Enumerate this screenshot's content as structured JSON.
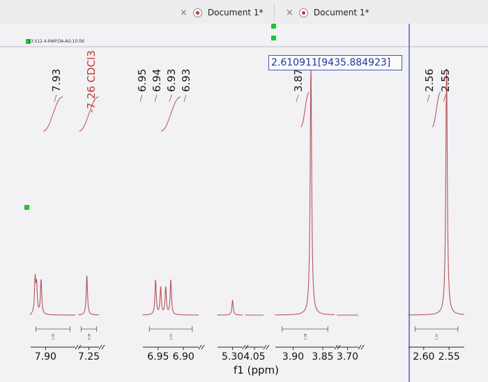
{
  "tabs": [
    {
      "close_glyph": "×",
      "icon": "document-icon",
      "label": "Document 1*"
    },
    {
      "close_glyph": "×",
      "icon": "document-icon",
      "label": "Document 1*"
    }
  ],
  "file_label": "23.S12.4-MAP.DA-AO.10.fid",
  "cursor_readout": "2.610911[9435.884923]",
  "colors": {
    "spectrum": "#b5545a",
    "cursor": "#3f55c9",
    "peak_label": "#1a1a1a",
    "solvent_label": "#c0392b",
    "marker": "#22c23a",
    "axis": "#222222"
  },
  "chart_data": {
    "type": "line",
    "title": "",
    "xlabel": "f1 (ppm)",
    "ylabel": "",
    "x_reversed": true,
    "axis_breaks": true,
    "segments": [
      {
        "range": [
          7.95,
          7.8
        ],
        "ticks": [
          "7.90"
        ]
      },
      {
        "range": [
          7.3,
          7.2
        ],
        "ticks": [
          "7.25"
        ]
      },
      {
        "range": [
          6.98,
          6.87
        ],
        "ticks": [
          "6.95",
          "6.90"
        ]
      },
      {
        "range": [
          5.33,
          5.28
        ],
        "ticks": [
          "5.30"
        ]
      },
      {
        "range": [
          4.07,
          4.03
        ],
        "ticks": [
          "4.05"
        ]
      },
      {
        "range": [
          3.93,
          3.83
        ],
        "ticks": [
          "3.90",
          "3.85"
        ]
      },
      {
        "range": [
          3.72,
          3.68
        ],
        "ticks": [
          "3.70"
        ]
      },
      {
        "range": [
          2.63,
          2.52
        ],
        "ticks": [
          "2.60",
          "2.55"
        ]
      }
    ],
    "peaks": [
      {
        "ppm": 7.935,
        "height": 0.14
      },
      {
        "ppm": 7.93,
        "height": 0.11
      },
      {
        "ppm": 7.915,
        "height": 0.14
      },
      {
        "ppm": 7.26,
        "height": 0.16
      },
      {
        "ppm": 6.955,
        "height": 0.14
      },
      {
        "ppm": 6.945,
        "height": 0.11
      },
      {
        "ppm": 6.935,
        "height": 0.11
      },
      {
        "ppm": 6.925,
        "height": 0.14
      },
      {
        "ppm": 5.3,
        "height": 0.06
      },
      {
        "ppm": 3.87,
        "height": 1.0
      },
      {
        "ppm": 2.555,
        "height": 1.0
      }
    ],
    "peak_labels": [
      {
        "text": "7.93",
        "segment": 0
      },
      {
        "text": "7.26 CDCl3",
        "segment": 1,
        "solvent": true
      },
      {
        "text": "6.95",
        "segment": 2
      },
      {
        "text": "6.94",
        "segment": 2
      },
      {
        "text": "6.93",
        "segment": 2
      },
      {
        "text": "6.93",
        "segment": 2
      },
      {
        "text": "3.87",
        "segment": 5
      },
      {
        "text": "2.56",
        "segment": 7
      },
      {
        "text": "2.55",
        "segment": 7
      }
    ],
    "integrals": [
      {
        "segment": 0,
        "value": "1.00"
      },
      {
        "segment": 1,
        "value": "0.36"
      },
      {
        "segment": 2,
        "value": "1.01"
      },
      {
        "segment": 5,
        "value": "1.58"
      },
      {
        "segment": 7,
        "value": "1.57"
      }
    ],
    "cursor_ppm": 2.610911
  }
}
